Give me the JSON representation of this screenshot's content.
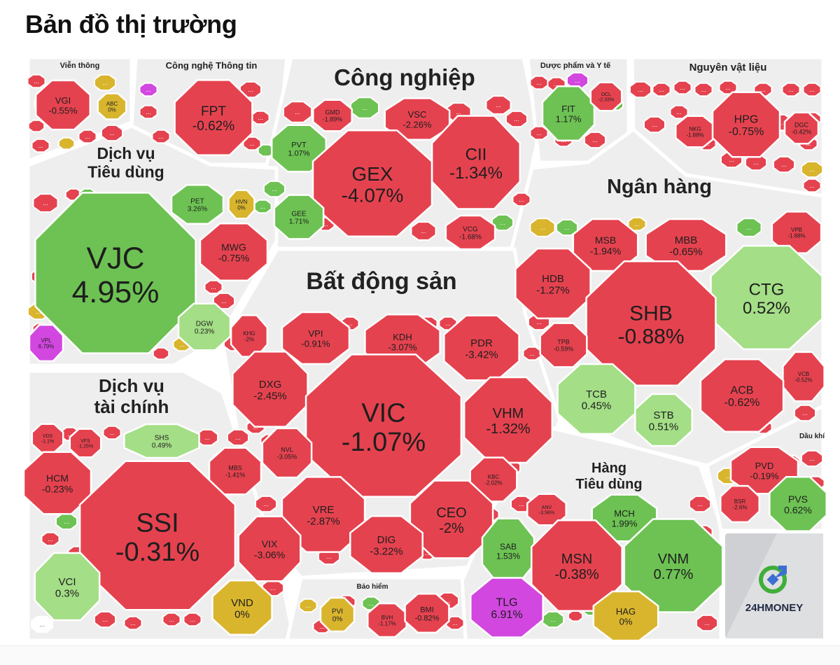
{
  "title": "Bản đồ thị trường",
  "brand": "24HMONEY",
  "more_label": "...",
  "colors": {
    "down": "#e5424f",
    "down_light": "#ef6e77",
    "up": "#6dc253",
    "up_light": "#a4de86",
    "flat": "#d9b52e",
    "ceiling": "#d247e0",
    "sector_bg": "#eeeeee",
    "brand_bg": "#cfd0d3"
  },
  "sectors": [
    {
      "id": "vien-thong",
      "label": "Viễn thông"
    },
    {
      "id": "cntt",
      "label": "Công nghệ Thông tin"
    },
    {
      "id": "cong-nghiep",
      "label": "Công nghiệp"
    },
    {
      "id": "duoc-pham",
      "label": "Dược phẩm và Y tế"
    },
    {
      "id": "nguyen-vat-lieu",
      "label": "Nguyên vật liệu"
    },
    {
      "id": "dich-vu-tieu-dung",
      "label": "Dịch vụ\nTiêu dùng"
    },
    {
      "id": "ngan-hang",
      "label": "Ngân hàng"
    },
    {
      "id": "bat-dong-san",
      "label": "Bất động sản"
    },
    {
      "id": "dich-vu-tai-chinh",
      "label": "Dịch vụ\ntài chính"
    },
    {
      "id": "hang-tieu-dung",
      "label": "Hàng\nTiêu dùng"
    },
    {
      "id": "dau-khi",
      "label": "Dầu khí"
    },
    {
      "id": "bao-hiem",
      "label": "Bảo hiểm"
    }
  ],
  "stocks": [
    {
      "ticker": "VGI",
      "change": "-0.55%",
      "pct": -0.55
    },
    {
      "ticker": "ABC",
      "change": "0%",
      "pct": 0
    },
    {
      "ticker": "FPT",
      "change": "-0.62%",
      "pct": -0.62
    },
    {
      "ticker": "GMD",
      "change": "-1.89%",
      "pct": -1.89
    },
    {
      "ticker": "VSC",
      "change": "-2.26%",
      "pct": -2.26
    },
    {
      "ticker": "PVT",
      "change": "1.07%",
      "pct": 1.07
    },
    {
      "ticker": "GEX",
      "change": "-4.07%",
      "pct": -4.07
    },
    {
      "ticker": "CII",
      "change": "-1.34%",
      "pct": -1.34
    },
    {
      "ticker": "GEE",
      "change": "1.71%",
      "pct": 1.71
    },
    {
      "ticker": "VCG",
      "change": "-1.68%",
      "pct": -1.68
    },
    {
      "ticker": "FIT",
      "change": "1.17%",
      "pct": 1.17
    },
    {
      "ticker": "DCL",
      "change": "-2.33%",
      "pct": -2.33
    },
    {
      "ticker": "NKG",
      "change": "-1.88%",
      "pct": -1.88
    },
    {
      "ticker": "HPG",
      "change": "-0.75%",
      "pct": -0.75
    },
    {
      "ticker": "DGC",
      "change": "-0.42%",
      "pct": -0.42
    },
    {
      "ticker": "PET",
      "change": "3.26%",
      "pct": 3.26
    },
    {
      "ticker": "HVN",
      "change": "0%",
      "pct": 0
    },
    {
      "ticker": "VJC",
      "change": "4.95%",
      "pct": 4.95
    },
    {
      "ticker": "MWG",
      "change": "-0.75%",
      "pct": -0.75
    },
    {
      "ticker": "DGW",
      "change": "0.23%",
      "pct": 0.23
    },
    {
      "ticker": "VPL",
      "change": "6.79%",
      "pct": 6.79
    },
    {
      "ticker": "MSB",
      "change": "-1.94%",
      "pct": -1.94
    },
    {
      "ticker": "MBB",
      "change": "-0.65%",
      "pct": -0.65
    },
    {
      "ticker": "VPB",
      "change": "-1.88%",
      "pct": -1.88
    },
    {
      "ticker": "HDB",
      "change": "-1.27%",
      "pct": -1.27
    },
    {
      "ticker": "CTG",
      "change": "0.52%",
      "pct": 0.52
    },
    {
      "ticker": "SHB",
      "change": "-0.88%",
      "pct": -0.88
    },
    {
      "ticker": "TPB",
      "change": "-0.59%",
      "pct": -0.59
    },
    {
      "ticker": "VCB",
      "change": "-0.52%",
      "pct": -0.52
    },
    {
      "ticker": "TCB",
      "change": "0.45%",
      "pct": 0.45
    },
    {
      "ticker": "ACB",
      "change": "-0.62%",
      "pct": -0.62
    },
    {
      "ticker": "STB",
      "change": "0.51%",
      "pct": 0.51
    },
    {
      "ticker": "KHG",
      "change": "-2%",
      "pct": -2
    },
    {
      "ticker": "VPI",
      "change": "-0.91%",
      "pct": -0.91
    },
    {
      "ticker": "KDH",
      "change": "-3.07%",
      "pct": -3.07
    },
    {
      "ticker": "PDR",
      "change": "-3.42%",
      "pct": -3.42
    },
    {
      "ticker": "DXG",
      "change": "-2.45%",
      "pct": -2.45
    },
    {
      "ticker": "VIC",
      "change": "-1.07%",
      "pct": -1.07
    },
    {
      "ticker": "VHM",
      "change": "-1.32%",
      "pct": -1.32
    },
    {
      "ticker": "NVL",
      "change": "-3.05%",
      "pct": -3.05
    },
    {
      "ticker": "KBC",
      "change": "-2.02%",
      "pct": -2.02
    },
    {
      "ticker": "VRE",
      "change": "-2.87%",
      "pct": -2.87
    },
    {
      "ticker": "CEO",
      "change": "-2%",
      "pct": -2
    },
    {
      "ticker": "DIG",
      "change": "-3.22%",
      "pct": -3.22
    },
    {
      "ticker": "VDS",
      "change": "-1.1%",
      "pct": -1.1
    },
    {
      "ticker": "VFS",
      "change": "-1.25%",
      "pct": -1.25
    },
    {
      "ticker": "SHS",
      "change": "0.49%",
      "pct": 0.49
    },
    {
      "ticker": "HCM",
      "change": "-0.23%",
      "pct": -0.23
    },
    {
      "ticker": "MBS",
      "change": "-1.41%",
      "pct": -1.41
    },
    {
      "ticker": "SSI",
      "change": "-0.31%",
      "pct": -0.31
    },
    {
      "ticker": "VIX",
      "change": "-3.06%",
      "pct": -3.06
    },
    {
      "ticker": "VCI",
      "change": "0.3%",
      "pct": 0.3
    },
    {
      "ticker": "VND",
      "change": "0%",
      "pct": 0
    },
    {
      "ticker": "PVD",
      "change": "-0.19%",
      "pct": -0.19
    },
    {
      "ticker": "BSR",
      "change": "-2.6%",
      "pct": -2.6
    },
    {
      "ticker": "PVS",
      "change": "0.62%",
      "pct": 0.62
    },
    {
      "ticker": "ANV",
      "change": "-3.56%",
      "pct": -3.56
    },
    {
      "ticker": "MCH",
      "change": "1.99%",
      "pct": 1.99
    },
    {
      "ticker": "SAB",
      "change": "1.53%",
      "pct": 1.53
    },
    {
      "ticker": "MSN",
      "change": "-0.38%",
      "pct": -0.38
    },
    {
      "ticker": "VNM",
      "change": "0.77%",
      "pct": 0.77
    },
    {
      "ticker": "TLG",
      "change": "6.91%",
      "pct": 6.91
    },
    {
      "ticker": "HAG",
      "change": "0%",
      "pct": 0
    },
    {
      "ticker": "PVI",
      "change": "0%",
      "pct": 0
    },
    {
      "ticker": "BVH",
      "change": "-1.17%",
      "pct": -1.17
    },
    {
      "ticker": "BMI",
      "change": "-0.82%",
      "pct": -0.82
    }
  ]
}
